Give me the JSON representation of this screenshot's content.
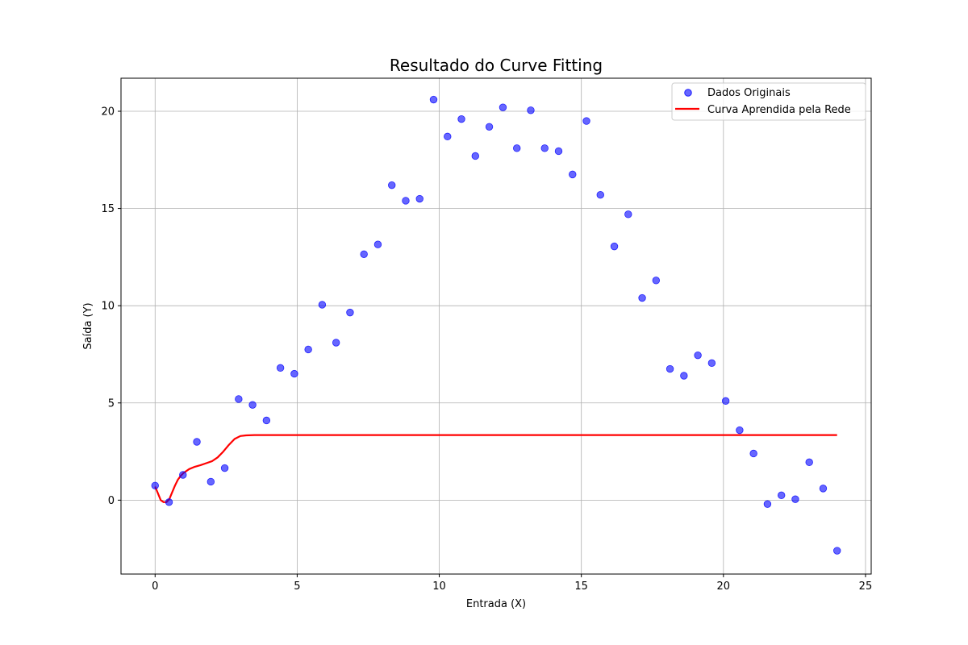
{
  "chart_data": {
    "type": "scatter",
    "title": "Resultado do Curve Fitting",
    "xlabel": "Entrada (X)",
    "ylabel": "Saída (Y)",
    "xlim": [
      -1.2,
      25.2
    ],
    "ylim": [
      -3.8,
      21.7
    ],
    "xticks": [
      0,
      5,
      10,
      15,
      20,
      25
    ],
    "yticks": [
      0,
      5,
      10,
      15,
      20
    ],
    "grid": true,
    "legend_position": "top-right",
    "series": [
      {
        "name": "Dados Originais",
        "kind": "scatter",
        "color": "#0000ff",
        "opacity": 0.6,
        "x": [
          0.0,
          0.49,
          0.98,
          1.47,
          1.96,
          2.45,
          2.94,
          3.43,
          3.92,
          4.41,
          4.9,
          5.39,
          5.88,
          6.37,
          6.86,
          7.35,
          7.84,
          8.33,
          8.82,
          9.31,
          9.8,
          10.29,
          10.78,
          11.27,
          11.76,
          12.24,
          12.73,
          13.22,
          13.71,
          14.2,
          14.69,
          15.18,
          15.67,
          16.16,
          16.65,
          17.14,
          17.63,
          18.12,
          18.61,
          19.1,
          19.59,
          20.08,
          20.57,
          21.06,
          21.55,
          22.04,
          22.53,
          23.02,
          23.51,
          24.0
        ],
        "y": [
          0.75,
          -0.1,
          1.3,
          3.0,
          0.95,
          1.65,
          5.2,
          4.9,
          4.1,
          6.8,
          6.5,
          7.75,
          10.05,
          8.1,
          9.65,
          12.65,
          13.15,
          16.2,
          15.4,
          15.5,
          20.6,
          18.7,
          19.6,
          17.7,
          19.2,
          20.2,
          18.1,
          20.05,
          18.1,
          17.95,
          16.75,
          19.5,
          15.7,
          13.05,
          14.7,
          10.4,
          11.3,
          6.75,
          6.4,
          7.45,
          7.05,
          5.1,
          3.6,
          2.4,
          -0.2,
          0.25,
          0.05,
          1.95,
          0.6,
          -2.6
        ]
      },
      {
        "name": "Curva Aprendida pela Rede",
        "kind": "line",
        "color": "#ff0000",
        "x": [
          0.0,
          0.1,
          0.2,
          0.3,
          0.4,
          0.5,
          0.6,
          0.7,
          0.8,
          0.9,
          1.0,
          1.2,
          1.4,
          1.6,
          1.8,
          2.0,
          2.2,
          2.4,
          2.6,
          2.8,
          3.0,
          3.2,
          3.5,
          4.0,
          5.0,
          10.0,
          15.0,
          20.0,
          24.0
        ],
        "y": [
          0.7,
          0.35,
          0.0,
          -0.1,
          -0.1,
          0.05,
          0.4,
          0.75,
          1.05,
          1.25,
          1.4,
          1.6,
          1.72,
          1.8,
          1.9,
          2.0,
          2.2,
          2.5,
          2.85,
          3.15,
          3.3,
          3.33,
          3.35,
          3.35,
          3.35,
          3.35,
          3.35,
          3.35,
          3.35
        ]
      }
    ]
  }
}
